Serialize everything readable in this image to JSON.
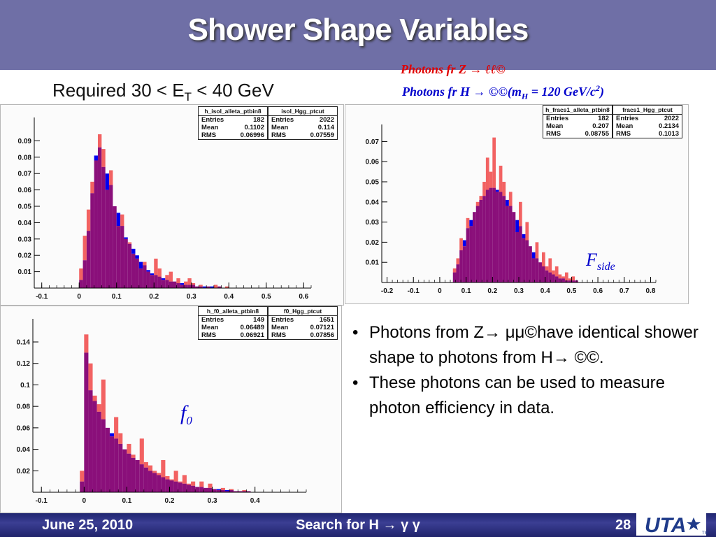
{
  "title": "Shower Shape Variables",
  "required_prefix": "Required 30 < E",
  "required_sub": "T",
  "required_suffix": " < 40 GeV",
  "legend_z": "Photons fr Z → ℓℓ©",
  "legend_h_prefix": "Photons fr H → ©©(m",
  "legend_h_sub": "H",
  "legend_h_mid": " = 120 GeV/c",
  "legend_h_sup": "2",
  "legend_h_suffix": ")",
  "fside_main": "F",
  "fside_sub": "side",
  "f0_main": "f",
  "f0_sub": "0",
  "bullets": [
    {
      "dot": "•",
      "text": "Photons from Z→ μμ©have identical shower shape to photons from H→ ©©."
    },
    {
      "dot": "•",
      "text": "These photons can be used to measure photon efficiency in data."
    }
  ],
  "footer": {
    "date": "June 25, 2010",
    "center": "Search for H → γ γ",
    "page": "28"
  },
  "logo_text": "UTA",
  "logo_tm": "TM",
  "colors": {
    "header": "#6f6fa6",
    "z_series": "#f26262",
    "h_series": "#0000ee",
    "overlap": "#8a0f7a"
  },
  "chart_data": [
    {
      "type": "histogram",
      "x_ticks": [
        -0.1,
        0,
        0.1,
        0.2,
        0.3,
        0.4,
        0.5,
        0.6
      ],
      "y_ticks": [
        0.01,
        0.02,
        0.03,
        0.04,
        0.05,
        0.06,
        0.07,
        0.08,
        0.09
      ],
      "xlim": [
        -0.12,
        0.62
      ],
      "ylim": [
        0,
        0.1
      ],
      "bin_start": 0.0,
      "bin_width": 0.01,
      "stats": [
        {
          "name": "h_isol_alleta_ptbin8",
          "entries": "182",
          "mean": "0.1102",
          "rms": "0.06996"
        },
        {
          "name": "isol_Hgg_ptcut",
          "entries": "2022",
          "mean": "0.114",
          "rms": "0.07559"
        }
      ],
      "stat_labels": [
        "Entries",
        "Mean",
        "RMS"
      ],
      "series": [
        {
          "name": "Photons fr Z",
          "values": [
            0.012,
            0.032,
            0.048,
            0.065,
            0.078,
            0.094,
            0.085,
            0.06,
            0.072,
            0.05,
            0.038,
            0.045,
            0.03,
            0.028,
            0.021,
            0.018,
            0.012,
            0.016,
            0.01,
            0.008,
            0.018,
            0.012,
            0.005,
            0.008,
            0.01,
            0.004,
            0.006,
            0.002,
            0.004,
            0.006,
            0.003,
            0.001,
            0.002,
            0,
            0.001,
            0,
            0.002,
            0.001,
            0,
            0.001
          ]
        },
        {
          "name": "Photons fr H",
          "values": [
            0.005,
            0.017,
            0.035,
            0.058,
            0.081,
            0.086,
            0.074,
            0.07,
            0.063,
            0.05,
            0.046,
            0.038,
            0.031,
            0.027,
            0.024,
            0.02,
            0.016,
            0.014,
            0.011,
            0.009,
            0.008,
            0.007,
            0.006,
            0.005,
            0.004,
            0.004,
            0.003,
            0.003,
            0.002,
            0.002,
            0.002,
            0.001,
            0.001,
            0.001,
            0.001,
            0.001,
            0,
            0.001,
            0,
            0
          ]
        }
      ]
    },
    {
      "type": "histogram",
      "x_ticks": [
        -0.2,
        -0.1,
        0,
        0.1,
        0.2,
        0.3,
        0.4,
        0.5,
        0.6,
        0.7,
        0.8
      ],
      "y_ticks": [
        0.01,
        0.02,
        0.03,
        0.04,
        0.05,
        0.06,
        0.07
      ],
      "xlim": [
        -0.22,
        0.82
      ],
      "ylim": [
        0,
        0.075
      ],
      "bin_start": 0.05,
      "bin_width": 0.0125,
      "stats": [
        {
          "name": "h_fracs1_alleta_ptbin8",
          "entries": "182",
          "mean": "0.207",
          "rms": "0.08755"
        },
        {
          "name": "fracs1_Hgg_ptcut",
          "entries": "2022",
          "mean": "0.2134",
          "rms": "0.1013"
        }
      ],
      "stat_labels": [
        "Entries",
        "Mean",
        "RMS"
      ],
      "series": [
        {
          "name": "Photons fr Z",
          "values": [
            0.007,
            0.012,
            0.022,
            0.018,
            0.032,
            0.028,
            0.035,
            0.04,
            0.043,
            0.05,
            0.062,
            0.055,
            0.072,
            0.045,
            0.058,
            0.05,
            0.038,
            0.045,
            0.035,
            0.025,
            0.04,
            0.022,
            0.03,
            0.018,
            0.012,
            0.02,
            0.01,
            0.015,
            0.008,
            0.012,
            0.006,
            0.008,
            0.004,
            0.003,
            0.005,
            0.002,
            0.003,
            0.001
          ]
        },
        {
          "name": "Photons fr H",
          "values": [
            0.005,
            0.009,
            0.016,
            0.021,
            0.027,
            0.031,
            0.035,
            0.038,
            0.041,
            0.043,
            0.046,
            0.047,
            0.047,
            0.046,
            0.045,
            0.043,
            0.041,
            0.038,
            0.035,
            0.031,
            0.028,
            0.024,
            0.021,
            0.018,
            0.015,
            0.012,
            0.01,
            0.008,
            0.006,
            0.005,
            0.004,
            0.003,
            0.002,
            0.002,
            0.001,
            0.001,
            0.001,
            0.001
          ]
        }
      ]
    },
    {
      "type": "histogram",
      "x_ticks": [
        -0.1,
        0,
        0.1,
        0.2,
        0.3,
        0.4
      ],
      "y_ticks": [
        0.02,
        0.04,
        0.06,
        0.08,
        0.1,
        0.12,
        0.14
      ],
      "xlim": [
        -0.12,
        0.52
      ],
      "ylim": [
        0,
        0.155
      ],
      "bin_start": -0.01,
      "bin_width": 0.01,
      "stats": [
        {
          "name": "h_f0_alleta_ptbin8",
          "entries": "149",
          "mean": "0.06489",
          "rms": "0.06921"
        },
        {
          "name": "f0_Hgg_ptcut",
          "entries": "1651",
          "mean": "0.07121",
          "rms": "0.07856"
        }
      ],
      "stat_labels": [
        "Entries",
        "Mean",
        "RMS"
      ],
      "series": [
        {
          "name": "Photons fr Z",
          "values": [
            0.02,
            0.147,
            0.12,
            0.09,
            0.082,
            0.105,
            0.06,
            0.052,
            0.07,
            0.055,
            0.04,
            0.045,
            0.035,
            0.03,
            0.05,
            0.028,
            0.025,
            0.02,
            0.018,
            0.03,
            0.015,
            0.012,
            0.02,
            0.01,
            0.016,
            0.008,
            0.01,
            0.005,
            0.01,
            0.004,
            0.008,
            0.003,
            0.002,
            0.004,
            0.001,
            0.003,
            0.001,
            0.001,
            0.002,
            0.001
          ]
        },
        {
          "name": "Photons fr H",
          "values": [
            0.01,
            0.13,
            0.095,
            0.085,
            0.075,
            0.068,
            0.06,
            0.055,
            0.05,
            0.045,
            0.04,
            0.036,
            0.032,
            0.03,
            0.026,
            0.023,
            0.02,
            0.018,
            0.016,
            0.014,
            0.012,
            0.011,
            0.01,
            0.009,
            0.008,
            0.007,
            0.006,
            0.005,
            0.005,
            0.004,
            0.004,
            0.003,
            0.003,
            0.002,
            0.002,
            0.002,
            0.001,
            0.001,
            0.001,
            0.001
          ]
        }
      ]
    }
  ]
}
